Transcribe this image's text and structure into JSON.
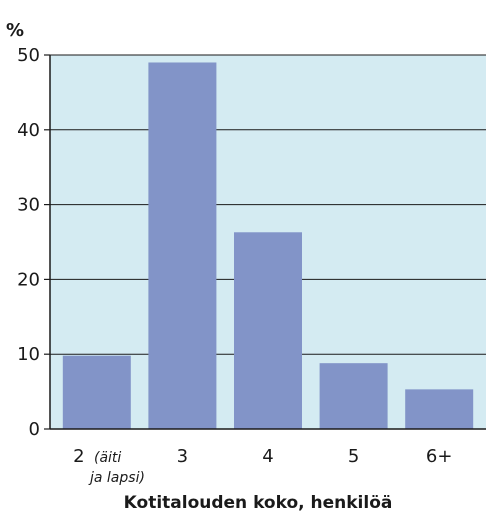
{
  "chart_data": {
    "type": "bar",
    "ylabel": "%",
    "xlabel": "Kotitalouden koko, henkilöä",
    "categories": [
      "2",
      "3",
      "4",
      "5",
      "6+"
    ],
    "category_notes": [
      "(äiti",
      "ja lapsi)",
      "",
      "",
      "",
      ""
    ],
    "values": [
      9.8,
      49,
      26.3,
      8.8,
      5.3
    ],
    "yticks": [
      0,
      10,
      20,
      30,
      40,
      50
    ],
    "ylim": [
      0,
      50
    ],
    "grid": true
  },
  "colors": {
    "plot_background": "#d4ebf2",
    "bar": "#8294c8",
    "grid": "#1a1a1a",
    "axis": "#1a1a1a"
  }
}
